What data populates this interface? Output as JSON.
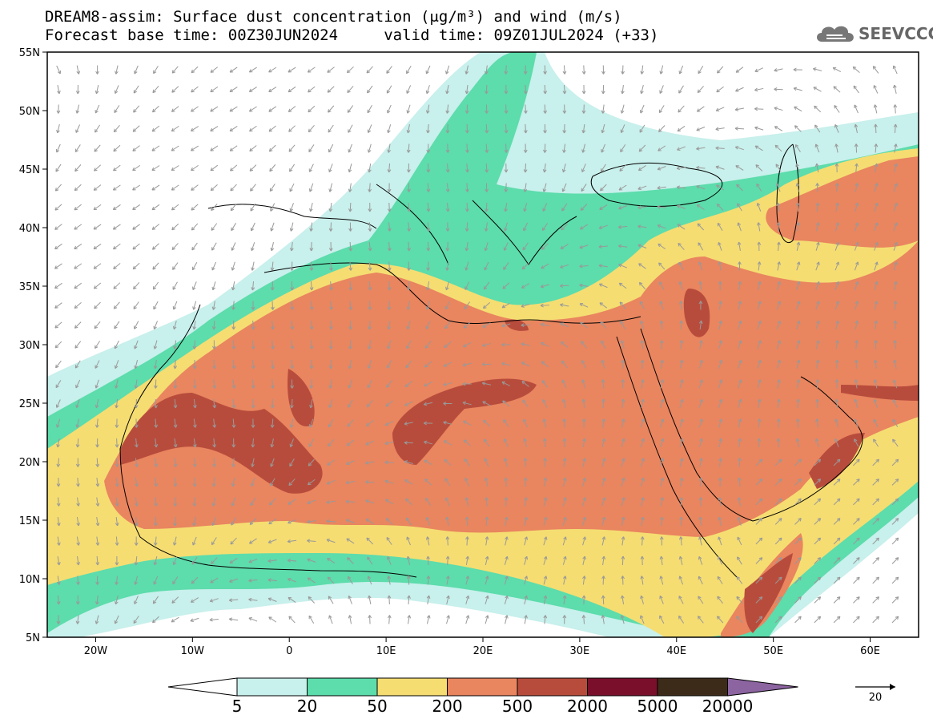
{
  "header": {
    "title_line1": "DREAM8-assim: Surface dust concentration (μg/m³) and wind (m/s)",
    "title_line2": "Forecast base time: 00Z30JUN2024     valid time: 09Z01JUL2024 (+33)"
  },
  "logo": {
    "text": "SEEVCCC",
    "icon": "cloud-icon"
  },
  "map": {
    "lon_range": [
      -25,
      65
    ],
    "lat_range": [
      5,
      55
    ],
    "lat_ticks": [
      {
        "value": 55,
        "label": "55N"
      },
      {
        "value": 50,
        "label": "50N"
      },
      {
        "value": 45,
        "label": "45N"
      },
      {
        "value": 40,
        "label": "40N"
      },
      {
        "value": 35,
        "label": "35N"
      },
      {
        "value": 30,
        "label": "30N"
      },
      {
        "value": 25,
        "label": "25N"
      },
      {
        "value": 20,
        "label": "20N"
      },
      {
        "value": 15,
        "label": "15N"
      },
      {
        "value": 10,
        "label": "10N"
      },
      {
        "value": 5,
        "label": "5N"
      }
    ],
    "lon_ticks": [
      {
        "value": -20,
        "label": "20W"
      },
      {
        "value": -10,
        "label": "10W"
      },
      {
        "value": 0,
        "label": "0"
      },
      {
        "value": 10,
        "label": "10E"
      },
      {
        "value": 20,
        "label": "20E"
      },
      {
        "value": 30,
        "label": "30E"
      },
      {
        "value": 40,
        "label": "40E"
      },
      {
        "value": 50,
        "label": "50E"
      },
      {
        "value": 60,
        "label": "60E"
      }
    ]
  },
  "legend": {
    "labels": [
      "5",
      "20",
      "50",
      "200",
      "500",
      "2000",
      "5000",
      "20000"
    ],
    "colors": [
      "#c8f0ec",
      "#5ddcac",
      "#f5dd72",
      "#e9855f",
      "#b84c3c",
      "#7a0f2c",
      "#3d2b19",
      "#8c64a0"
    ],
    "reference_vector_label": "20"
  }
}
